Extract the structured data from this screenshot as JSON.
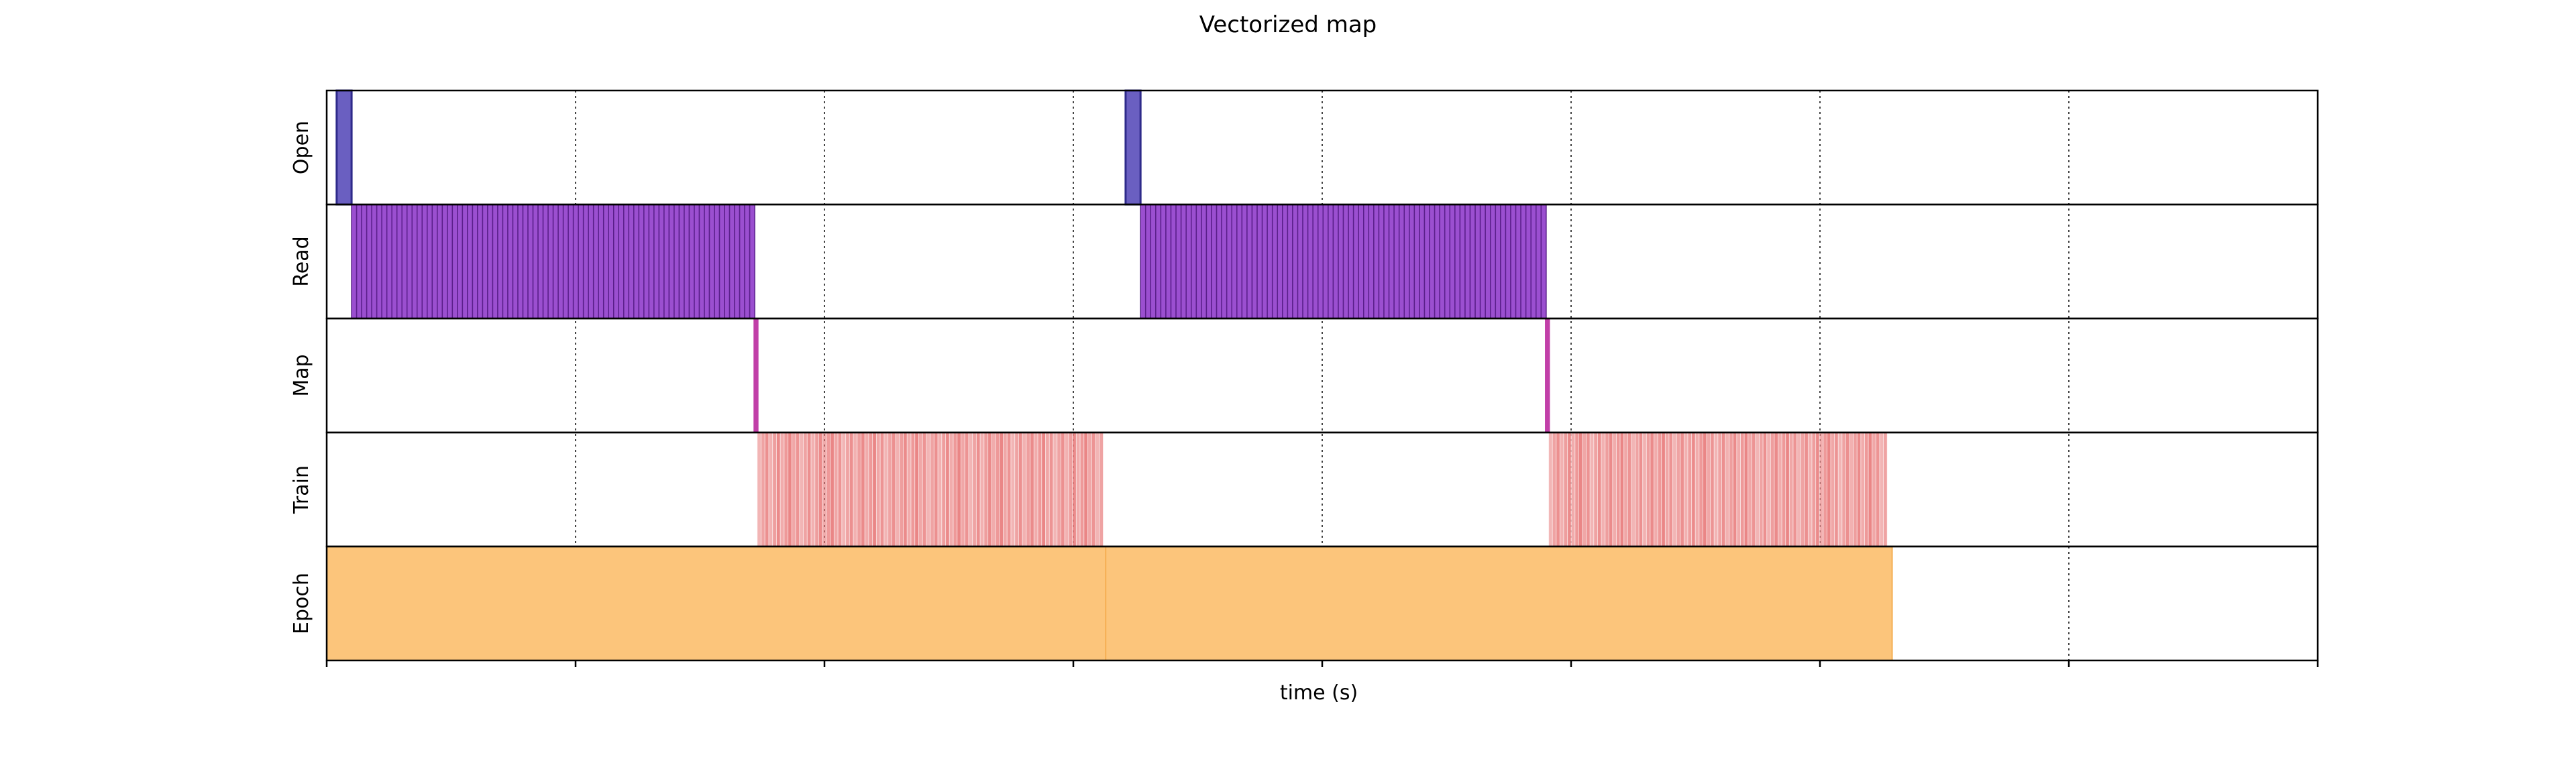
{
  "chart_data": {
    "type": "timeline",
    "title": "Vectorized map",
    "xlabel": "time (s)",
    "ylabel": "",
    "xlim": [
      0,
      8
    ],
    "x_ticks": [
      0,
      1,
      2,
      3,
      4,
      5,
      6,
      7,
      8
    ],
    "x_tick_labels_shown": false,
    "grid": "vertical dotted at each x tick",
    "rows": [
      "Open",
      "Read",
      "Map",
      "Train",
      "Epoch"
    ],
    "colors": {
      "Open": "#6a5fc1",
      "Read": "#9b4fd0",
      "Map": "#c13fa8",
      "Train": "#e87979",
      "Epoch": "#fcc57b"
    },
    "series": [
      {
        "name": "Open",
        "intervals": [
          [
            0.04,
            0.1
          ],
          [
            3.21,
            3.27
          ]
        ]
      },
      {
        "name": "Read",
        "span": [
          [
            0.1,
            1.72
          ],
          [
            3.27,
            4.9
          ]
        ],
        "slices_per_span": 80
      },
      {
        "name": "Map",
        "intervals": [
          [
            1.715,
            1.735
          ],
          [
            4.895,
            4.915
          ]
        ]
      },
      {
        "name": "Train",
        "span": [
          [
            1.73,
            3.12
          ],
          [
            4.91,
            6.27
          ]
        ],
        "slices_per_span": 90
      },
      {
        "name": "Epoch",
        "intervals": [
          [
            0.0,
            3.13
          ],
          [
            3.13,
            6.29
          ]
        ]
      }
    ]
  }
}
